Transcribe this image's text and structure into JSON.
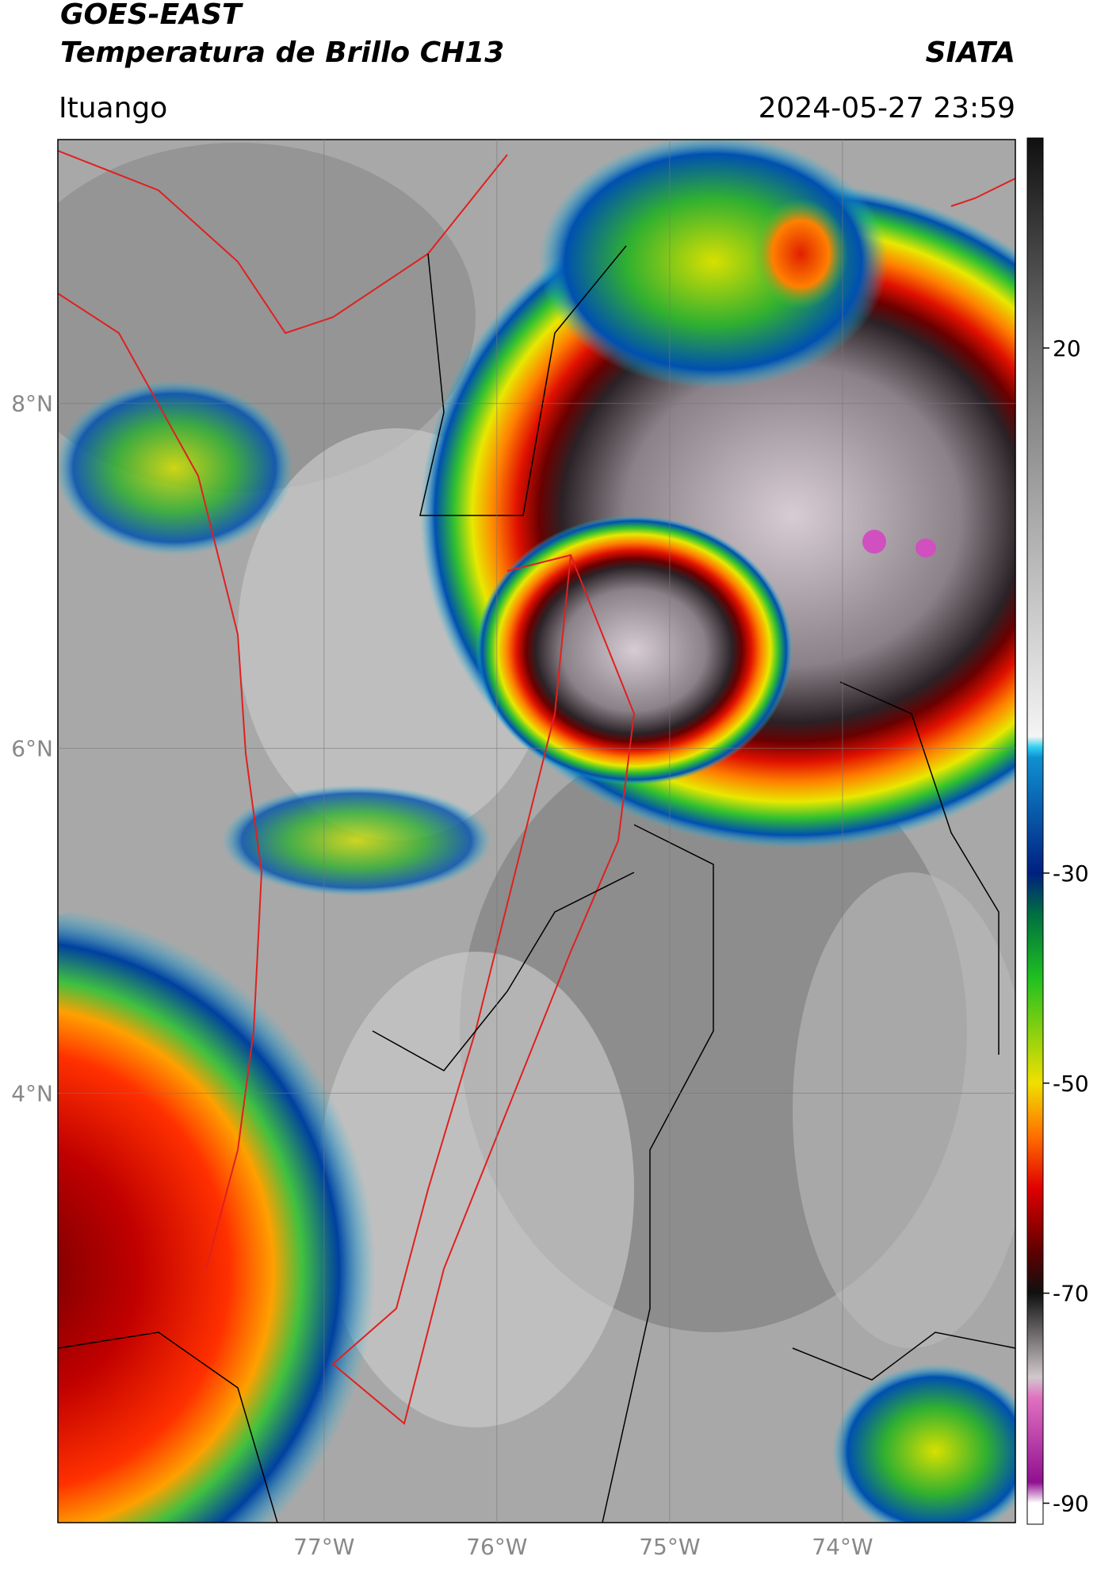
{
  "header": {
    "title": "GOES-EAST",
    "subtitle": "Temperatura de Brillo CH13",
    "source": "SIATA",
    "location": "Ituango",
    "datetime": "2024-05-27 23:59"
  },
  "map": {
    "xlim": [
      -78.54,
      -73.0
    ],
    "ylim": [
      1.51,
      9.53
    ],
    "lat_ticks": [
      {
        "value": 8,
        "label": "8°N"
      },
      {
        "value": 6,
        "label": "6°N"
      },
      {
        "value": 4,
        "label": "4°N"
      }
    ],
    "lon_ticks": [
      {
        "value": -77,
        "label": "77°W"
      },
      {
        "value": -76,
        "label": "76°W"
      },
      {
        "value": -75,
        "label": "75°W"
      },
      {
        "value": -74,
        "label": "74°W"
      }
    ],
    "grid": true
  },
  "colorbar": {
    "lim": [
      -92,
      40
    ],
    "ticks": [
      20,
      -30,
      -50,
      -70,
      -90
    ]
  }
}
